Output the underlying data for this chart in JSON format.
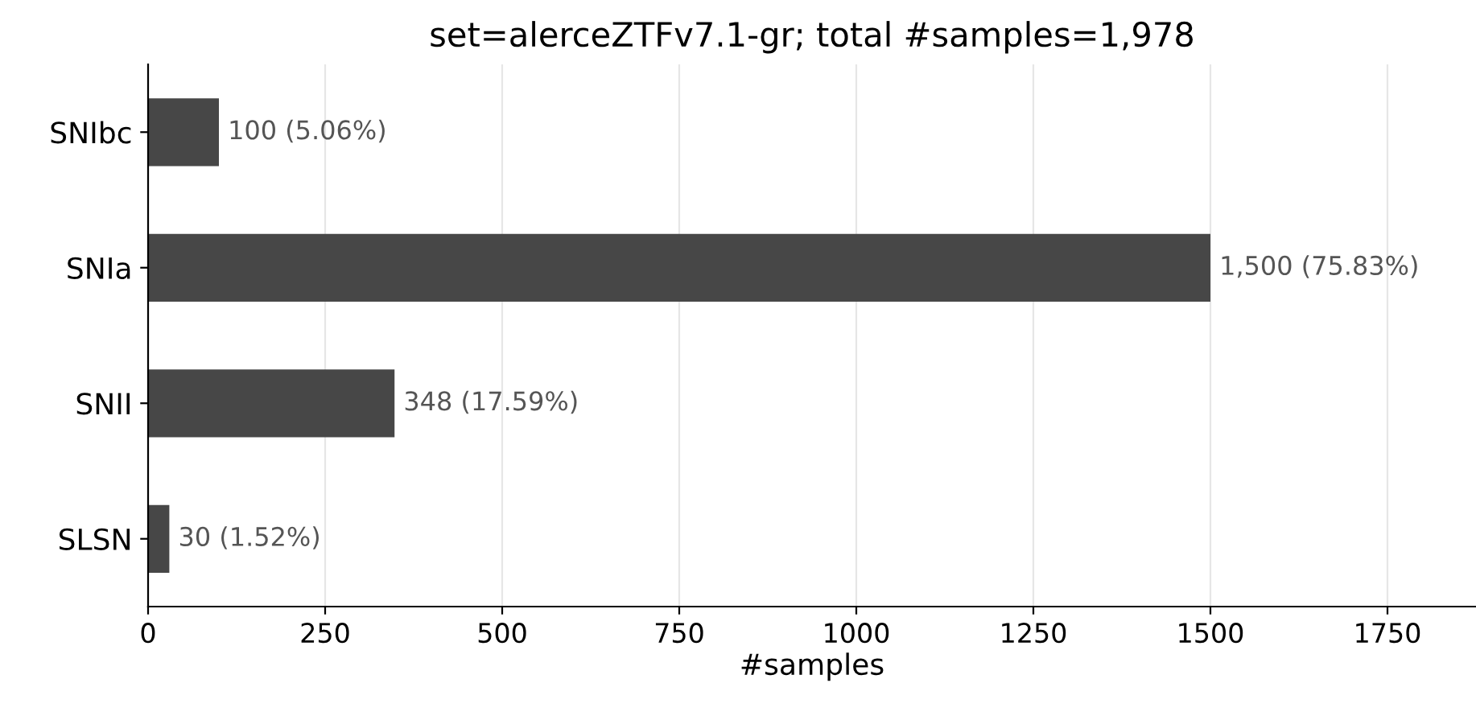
{
  "chart_data": {
    "type": "bar",
    "orientation": "horizontal",
    "title": "set=alerceZTFv7.1-gr; total #samples=1,978",
    "xlabel": "#samples",
    "categories": [
      "SNIbc",
      "SNIa",
      "SNII",
      "SLSN"
    ],
    "values": [
      100,
      1500,
      348,
      30
    ],
    "value_labels": [
      "100 (5.06%)",
      "1,500 (75.83%)",
      "348 (17.59%)",
      "30 (1.52%)"
    ],
    "color": "#474747",
    "xlim": [
      0,
      1875
    ],
    "xticks": [
      0,
      250,
      500,
      750,
      1000,
      1250,
      1500,
      1750
    ],
    "grid": "x"
  }
}
